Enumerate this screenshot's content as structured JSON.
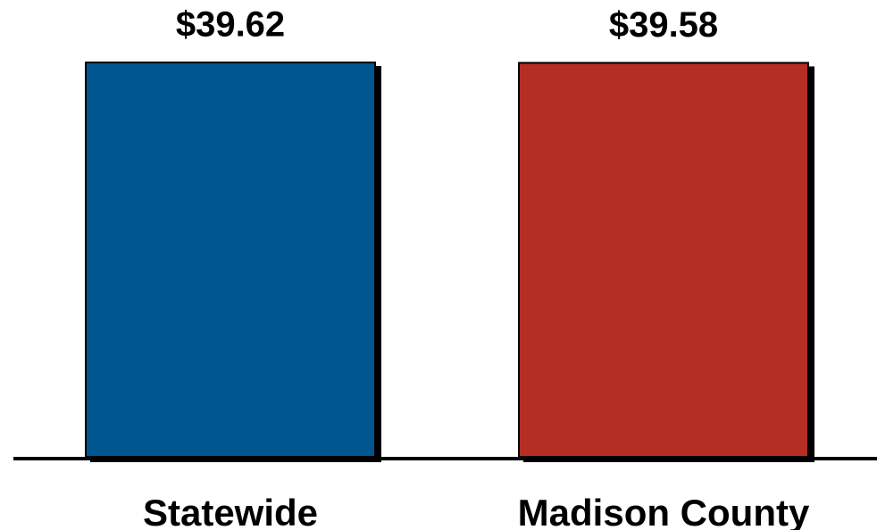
{
  "chart_data": {
    "type": "bar",
    "categories": [
      "Statewide",
      "Madison County"
    ],
    "series": [
      {
        "values": [
          39.62,
          39.58
        ],
        "value_labels": [
          "$39.62",
          "$39.58"
        ],
        "colors": [
          "#00568f",
          "#b52e25"
        ]
      }
    ]
  }
}
